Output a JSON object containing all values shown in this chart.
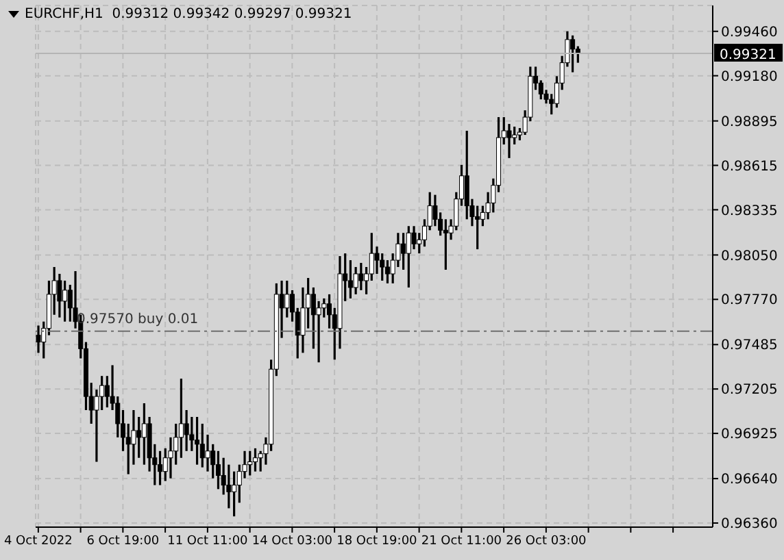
{
  "chart_data": {
    "type": "candlestick",
    "title": "EURCHF,H1  0.99312 0.99342 0.99297 0.99321",
    "color": "#000000",
    "grid": true,
    "categories": [
      "4 Oct 2022",
      null,
      null,
      null,
      null,
      null,
      null,
      null,
      null,
      null,
      null,
      null,
      null,
      null,
      null,
      null,
      "6 Oct 19:00",
      null,
      null,
      null,
      null,
      null,
      null,
      null,
      null,
      null,
      null,
      null,
      null,
      null,
      null,
      null,
      "11 Oct 11:00",
      null,
      null,
      null,
      null,
      null,
      null,
      null,
      null,
      null,
      null,
      null,
      null,
      null,
      null,
      null,
      "14 Oct 03:00",
      null,
      null,
      null,
      null,
      null,
      null,
      null,
      null,
      null,
      null,
      null,
      null,
      null,
      null,
      null,
      "18 Oct 19:00",
      null,
      null,
      null,
      null,
      null,
      null,
      null,
      null,
      null,
      null,
      null,
      null,
      null,
      null,
      null,
      "21 Oct 11:00",
      null,
      null,
      null,
      null,
      null,
      null,
      null,
      null,
      null,
      null,
      null,
      null,
      null,
      null,
      null,
      "26 Oct 03:00",
      null,
      null,
      null,
      null,
      null,
      null,
      null,
      null,
      null,
      null,
      null,
      null,
      null,
      null,
      null,
      null,
      null,
      null,
      null,
      null,
      null,
      null,
      null,
      null,
      null,
      null,
      null,
      null,
      null,
      null,
      null
    ],
    "ohlc": [
      [
        0.97544,
        0.97605,
        0.97433,
        0.97501
      ],
      [
        0.97501,
        0.9763,
        0.97398,
        0.97587
      ],
      [
        0.97587,
        0.97888,
        0.97544,
        0.97802
      ],
      [
        0.97802,
        0.97974,
        0.97673,
        0.97888
      ],
      [
        0.97888,
        0.97931,
        0.97656,
        0.97759
      ],
      [
        0.97759,
        0.97888,
        0.9763,
        0.97828
      ],
      [
        0.97828,
        0.97862,
        0.9763,
        0.97716
      ],
      [
        0.97716,
        0.97948,
        0.97587,
        0.9763
      ],
      [
        0.9763,
        0.97673,
        0.97398,
        0.97459
      ],
      [
        0.97459,
        0.97501,
        0.97072,
        0.97158
      ],
      [
        0.97158,
        0.97244,
        0.96986,
        0.97072
      ],
      [
        0.97072,
        0.97201,
        0.96746,
        0.97158
      ],
      [
        0.97158,
        0.97287,
        0.97072,
        0.97227
      ],
      [
        0.97227,
        0.97287,
        0.97089,
        0.97158
      ],
      [
        0.97158,
        0.97355,
        0.97072,
        0.97115
      ],
      [
        0.97115,
        0.97158,
        0.969,
        0.96986
      ],
      [
        0.96986,
        0.97072,
        0.96814,
        0.969
      ],
      [
        0.969,
        0.96986,
        0.96668,
        0.96857
      ],
      [
        0.96857,
        0.97072,
        0.96728,
        0.96943
      ],
      [
        0.96943,
        0.97029,
        0.96771,
        0.969
      ],
      [
        0.969,
        0.97115,
        0.96728,
        0.96986
      ],
      [
        0.96986,
        0.97029,
        0.96685,
        0.96771
      ],
      [
        0.96771,
        0.96857,
        0.96599,
        0.96728
      ],
      [
        0.96728,
        0.96814,
        0.96599,
        0.96685
      ],
      [
        0.96685,
        0.96831,
        0.96625,
        0.96771
      ],
      [
        0.96771,
        0.969,
        0.96642,
        0.96814
      ],
      [
        0.96814,
        0.96986,
        0.96728,
        0.969
      ],
      [
        0.969,
        0.9727,
        0.96771,
        0.96986
      ],
      [
        0.96986,
        0.97072,
        0.96814,
        0.96917
      ],
      [
        0.96917,
        0.97029,
        0.96814,
        0.96883
      ],
      [
        0.96883,
        0.97029,
        0.96728,
        0.96857
      ],
      [
        0.96857,
        0.96986,
        0.96711,
        0.96771
      ],
      [
        0.96771,
        0.96917,
        0.96685,
        0.96814
      ],
      [
        0.96814,
        0.96857,
        0.96642,
        0.96728
      ],
      [
        0.96728,
        0.96814,
        0.96574,
        0.9666
      ],
      [
        0.9666,
        0.96771,
        0.96539,
        0.96599
      ],
      [
        0.96599,
        0.96728,
        0.96453,
        0.96557
      ],
      [
        0.96557,
        0.96685,
        0.96402,
        0.96599
      ],
      [
        0.96599,
        0.96728,
        0.96488,
        0.96685
      ],
      [
        0.96685,
        0.96814,
        0.96642,
        0.96728
      ],
      [
        0.96728,
        0.96814,
        0.9666,
        0.96746
      ],
      [
        0.96746,
        0.96831,
        0.96685,
        0.96771
      ],
      [
        0.96771,
        0.96814,
        0.96685,
        0.96797
      ],
      [
        0.96797,
        0.969,
        0.96728,
        0.96857
      ],
      [
        0.96857,
        0.9739,
        0.96814,
        0.9733
      ],
      [
        0.9733,
        0.97871,
        0.97287,
        0.97802
      ],
      [
        0.97802,
        0.97888,
        0.97527,
        0.97716
      ],
      [
        0.97716,
        0.97888,
        0.97656,
        0.97802
      ],
      [
        0.97802,
        0.97828,
        0.9763,
        0.9769
      ],
      [
        0.9769,
        0.97716,
        0.97398,
        0.97544
      ],
      [
        0.97544,
        0.97845,
        0.97433,
        0.97716
      ],
      [
        0.97716,
        0.97905,
        0.97587,
        0.97802
      ],
      [
        0.97802,
        0.97845,
        0.97459,
        0.97673
      ],
      [
        0.97673,
        0.97759,
        0.97373,
        0.97716
      ],
      [
        0.97716,
        0.97776,
        0.97656,
        0.97742
      ],
      [
        0.97742,
        0.97802,
        0.97587,
        0.97673
      ],
      [
        0.97673,
        0.97716,
        0.9739,
        0.97587
      ],
      [
        0.97587,
        0.98043,
        0.97459,
        0.97931
      ],
      [
        0.97931,
        0.9806,
        0.97759,
        0.97888
      ],
      [
        0.97888,
        0.98017,
        0.97776,
        0.97845
      ],
      [
        0.97845,
        0.97974,
        0.97802,
        0.97931
      ],
      [
        0.97931,
        0.98,
        0.97828,
        0.97888
      ],
      [
        0.97888,
        0.97974,
        0.97802,
        0.97931
      ],
      [
        0.97931,
        0.98189,
        0.97888,
        0.9806
      ],
      [
        0.9806,
        0.98103,
        0.97931,
        0.98017
      ],
      [
        0.98017,
        0.9806,
        0.97888,
        0.97974
      ],
      [
        0.97974,
        0.98017,
        0.97871,
        0.97931
      ],
      [
        0.97931,
        0.9806,
        0.97871,
        0.98017
      ],
      [
        0.98017,
        0.98189,
        0.97974,
        0.9812
      ],
      [
        0.9812,
        0.98189,
        0.97957,
        0.9806
      ],
      [
        0.9806,
        0.98232,
        0.97845,
        0.98189
      ],
      [
        0.98189,
        0.98232,
        0.98086,
        0.9812
      ],
      [
        0.9812,
        0.98189,
        0.9806,
        0.98146
      ],
      [
        0.98146,
        0.98275,
        0.98103,
        0.98232
      ],
      [
        0.98232,
        0.98446,
        0.98206,
        0.9836
      ],
      [
        0.9836,
        0.98429,
        0.98232,
        0.98275
      ],
      [
        0.98275,
        0.98318,
        0.98172,
        0.98206
      ],
      [
        0.98206,
        0.98275,
        0.97957,
        0.98189
      ],
      [
        0.98189,
        0.98275,
        0.98146,
        0.98232
      ],
      [
        0.98232,
        0.98446,
        0.98206,
        0.98403
      ],
      [
        0.98403,
        0.98618,
        0.9836,
        0.98549
      ],
      [
        0.98549,
        0.98833,
        0.98275,
        0.9836
      ],
      [
        0.9836,
        0.98403,
        0.98232,
        0.98292
      ],
      [
        0.98292,
        0.9836,
        0.98086,
        0.98275
      ],
      [
        0.98275,
        0.9836,
        0.98232,
        0.98318
      ],
      [
        0.98318,
        0.98446,
        0.98275,
        0.98378
      ],
      [
        0.98378,
        0.98532,
        0.98318,
        0.98489
      ],
      [
        0.98489,
        0.98919,
        0.98446,
        0.9879
      ],
      [
        0.9879,
        0.98919,
        0.98747,
        0.98833
      ],
      [
        0.98833,
        0.98876,
        0.98661,
        0.9879
      ],
      [
        0.9879,
        0.98859,
        0.98747,
        0.98807
      ],
      [
        0.98807,
        0.9885,
        0.98773,
        0.98824
      ],
      [
        0.98824,
        0.98962,
        0.98807,
        0.98919
      ],
      [
        0.98919,
        0.99237,
        0.98893,
        0.99177
      ],
      [
        0.99177,
        0.99237,
        0.99091,
        0.99134
      ],
      [
        0.99134,
        0.99151,
        0.99031,
        0.99065
      ],
      [
        0.99065,
        0.99091,
        0.99005,
        0.99031
      ],
      [
        0.99031,
        0.99065,
        0.98936,
        0.99005
      ],
      [
        0.99005,
        0.99177,
        0.98979,
        0.99134
      ],
      [
        0.99134,
        0.99305,
        0.99091,
        0.99262
      ],
      [
        0.99262,
        0.9946,
        0.99237,
        0.99408
      ],
      [
        0.99408,
        0.99434,
        0.99202,
        0.99348
      ],
      [
        0.99348,
        0.99366,
        0.99262,
        0.99321
      ],
      null,
      null,
      null,
      null,
      null,
      null,
      null,
      null,
      null,
      null,
      null,
      null,
      null,
      null,
      null,
      null,
      null,
      null,
      null,
      null,
      null,
      null,
      null,
      null,
      null
    ],
    "ylim": [
      0.96334,
      0.99623
    ],
    "yticks": [
      {
        "value": 0.9636,
        "label": "0.96360"
      },
      {
        "value": 0.9664,
        "label": "0.96640"
      },
      {
        "value": 0.96925,
        "label": "0.96925"
      },
      {
        "value": 0.97205,
        "label": "0.97205"
      },
      {
        "value": 0.97485,
        "label": "0.97485"
      },
      {
        "value": 0.9777,
        "label": "0.97770"
      },
      {
        "value": 0.9805,
        "label": "0.98050"
      },
      {
        "value": 0.98335,
        "label": "0.98335"
      },
      {
        "value": 0.98615,
        "label": "0.98615"
      },
      {
        "value": 0.98895,
        "label": "0.98895"
      },
      {
        "value": 0.9918,
        "label": "0.99180"
      },
      {
        "value": 0.9946,
        "label": "0.99460"
      }
    ],
    "ref_lines": [
      {
        "axis": "y",
        "value": 0.9757,
        "label": "0.97570 buy 0.01",
        "color": "#6e6e6e",
        "line_style": "dashed"
      },
      {
        "axis": "y",
        "value": 0.99321,
        "label": "0.99321",
        "color": "#b4b4b4",
        "line_style": "solid"
      }
    ]
  }
}
